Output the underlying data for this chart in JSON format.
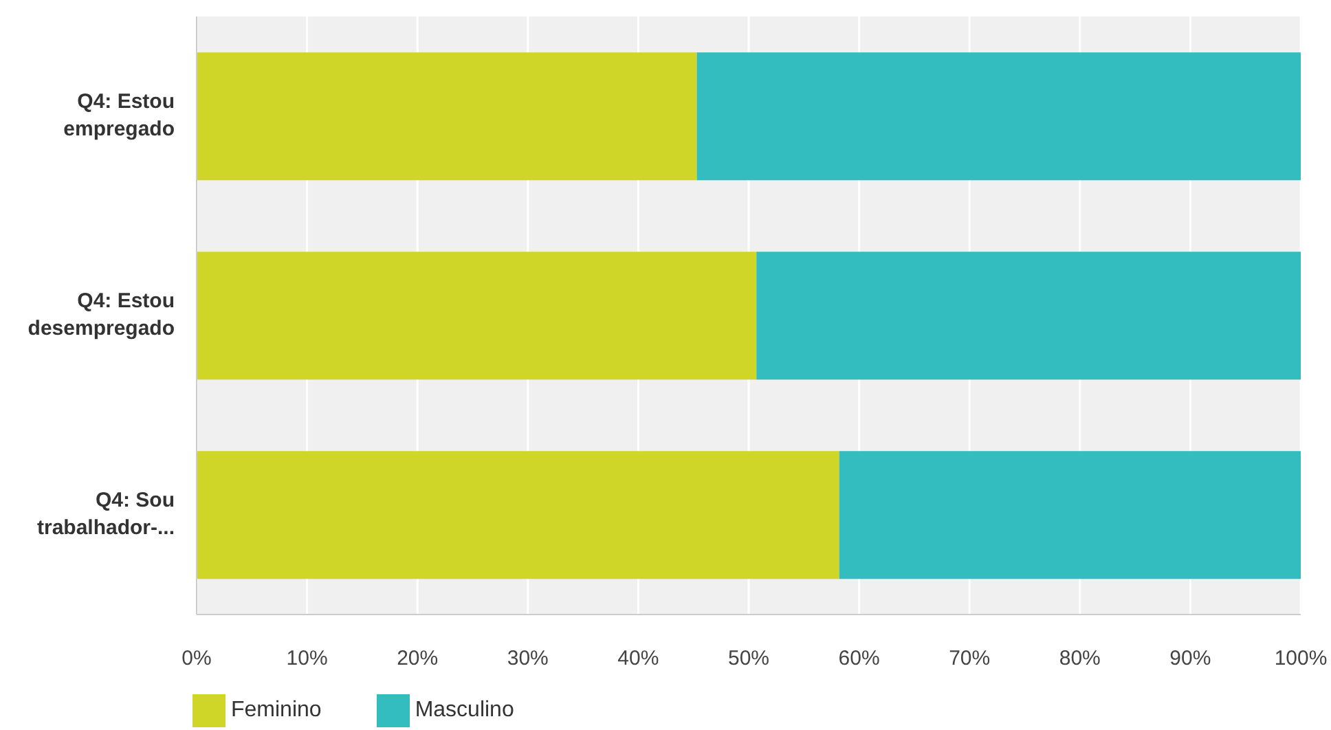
{
  "chart_data": {
    "type": "bar",
    "orientation": "horizontal",
    "stacked": true,
    "categories": [
      "Q4: Estou empregado",
      "Q4: Estou desempregado",
      "Q4: Sou trabalhador-..."
    ],
    "series": [
      {
        "name": "Feminino",
        "color": "#cfd628",
        "values": [
          45.3,
          50.7,
          58.2
        ]
      },
      {
        "name": "Masculino",
        "color": "#33bdbf",
        "values": [
          54.7,
          49.3,
          41.8
        ]
      }
    ],
    "xlim": [
      0,
      100
    ],
    "xticks": [
      {
        "value": 0,
        "label": "0%"
      },
      {
        "value": 10,
        "label": "10%"
      },
      {
        "value": 20,
        "label": "20%"
      },
      {
        "value": 30,
        "label": "30%"
      },
      {
        "value": 40,
        "label": "40%"
      },
      {
        "value": 50,
        "label": "50%"
      },
      {
        "value": 60,
        "label": "60%"
      },
      {
        "value": 70,
        "label": "70%"
      },
      {
        "value": 80,
        "label": "80%"
      },
      {
        "value": 90,
        "label": "90%"
      },
      {
        "value": 100,
        "label": "100%"
      }
    ],
    "grid": "x",
    "legend": "bottom left"
  }
}
